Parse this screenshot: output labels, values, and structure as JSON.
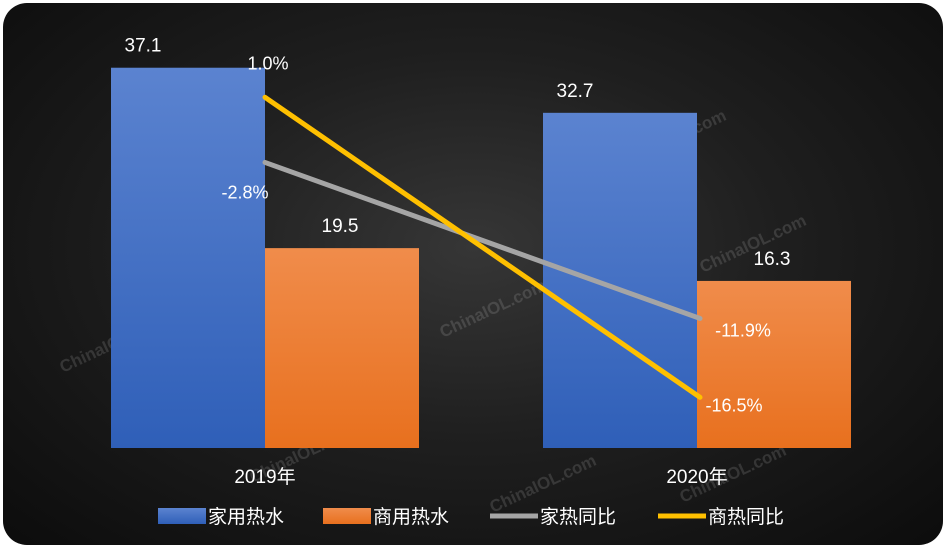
{
  "chart_data": {
    "type": "bar",
    "categories": [
      "2019年",
      "2020年"
    ],
    "series": [
      {
        "name": "家用热水",
        "kind": "bar",
        "axis": "left",
        "values": [
          37.1,
          32.7
        ],
        "labels": [
          "37.1",
          "32.7"
        ],
        "color": "#4472c4"
      },
      {
        "name": "商用热水",
        "kind": "bar",
        "axis": "left",
        "values": [
          19.5,
          16.3
        ],
        "labels": [
          "19.5",
          "16.3"
        ],
        "color": "#ed7d31"
      },
      {
        "name": "家热同比",
        "kind": "line",
        "axis": "right",
        "values": [
          -2.8,
          -11.9
        ],
        "labels": [
          "-2.8%",
          "-11.9%"
        ],
        "color": "#a5a5a5"
      },
      {
        "name": "商热同比",
        "kind": "line",
        "axis": "right",
        "values": [
          1.0,
          -16.5
        ],
        "labels": [
          "1.0%",
          "-16.5%"
        ],
        "color": "#ffc000"
      }
    ],
    "ylim": [
      0,
      40
    ],
    "y2lim": [
      -18,
      3
    ],
    "grid": false,
    "legend": "bottom",
    "watermark": "ChinaIOL.com"
  }
}
